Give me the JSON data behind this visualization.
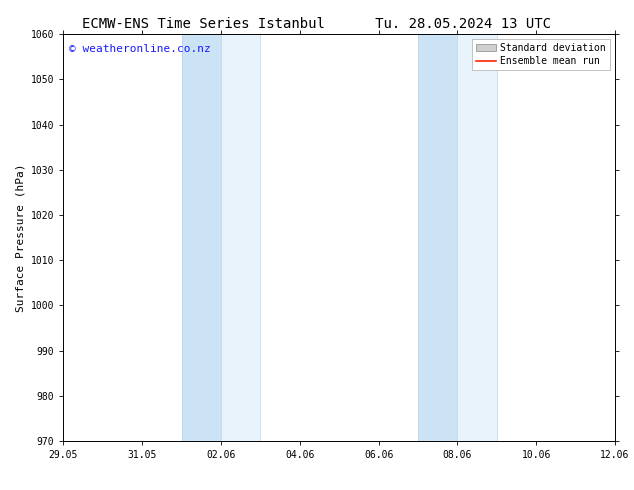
{
  "title_left": "ECMW-ENS Time Series Istanbul",
  "title_right": "Tu. 28.05.2024 13 UTC",
  "ylabel": "Surface Pressure (hPa)",
  "ylim": [
    970,
    1060
  ],
  "yticks": [
    970,
    980,
    990,
    1000,
    1010,
    1020,
    1030,
    1040,
    1050,
    1060
  ],
  "xlabel_dates": [
    "29.05",
    "31.05",
    "02.06",
    "04.06",
    "06.06",
    "08.06",
    "10.06",
    "12.06"
  ],
  "x_tick_positions": [
    0,
    2,
    4,
    6,
    8,
    10,
    12,
    14
  ],
  "band1_start": 3.0,
  "band1_mid": 4.0,
  "band1_end": 5.0,
  "band2_start": 9.0,
  "band2_mid": 10.0,
  "band2_end": 11.0,
  "band_color_light": "#e8f3fb",
  "band_color_dark": "#cce3f5",
  "band_line_color": "#b8d4e8",
  "copyright_text": "© weatheronline.co.nz",
  "copyright_color": "#1a1aff",
  "legend_std_facecolor": "#d0d0d0",
  "legend_std_edgecolor": "#888888",
  "legend_mean_color": "#ff2200",
  "background_color": "#ffffff",
  "plot_bg_color": "#ffffff",
  "title_fontsize": 10,
  "label_fontsize": 8,
  "tick_fontsize": 7,
  "copyright_fontsize": 8,
  "legend_fontsize": 7
}
